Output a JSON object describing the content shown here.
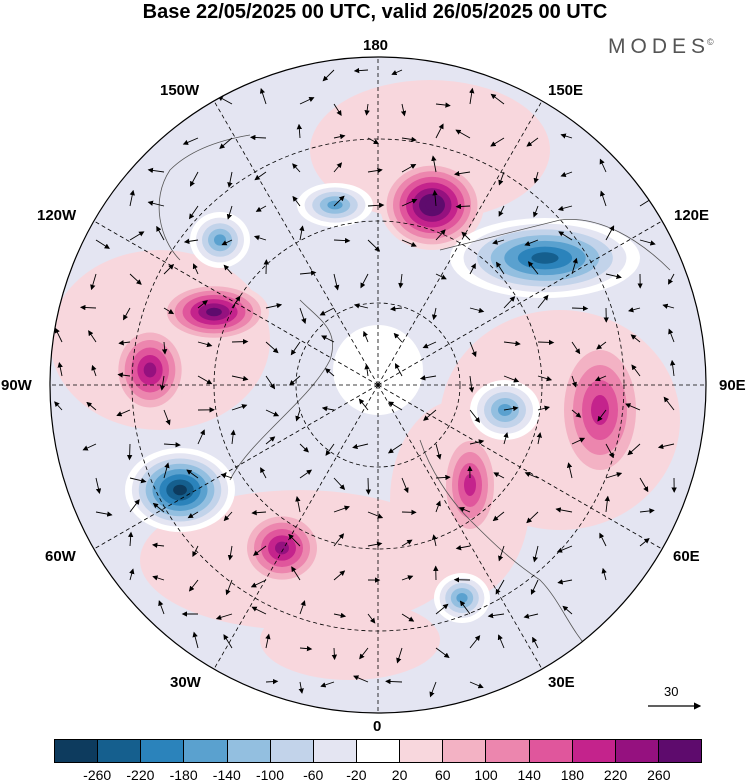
{
  "title": "Base 22/05/2025 00 UTC, valid 26/05/2025 00 UTC",
  "brand": {
    "text": "MODES",
    "mark": "©"
  },
  "longitude_labels": {
    "top": "180",
    "top_right": "150E",
    "upper_right": "120E",
    "right": "90E",
    "lower_right": "60E",
    "bottom_right": "30E",
    "bottom": "0",
    "bottom_left": "30W",
    "lower_left": "60W",
    "left": "90W",
    "upper_left": "120W",
    "top_left": "150W"
  },
  "reference_vector": {
    "value": "30"
  },
  "anomaly_centers": [
    {
      "name": "east-siberia-high",
      "sign": "positive",
      "level": 260
    },
    {
      "name": "east-siberia-low",
      "sign": "negative",
      "level": -220
    },
    {
      "name": "canada-high-north",
      "sign": "positive",
      "level": 220
    },
    {
      "name": "canada-high-south",
      "sign": "positive",
      "level": 180
    },
    {
      "name": "north-atlantic-low",
      "sign": "negative",
      "level": -260
    },
    {
      "name": "mid-atlantic-high",
      "sign": "positive",
      "level": 180
    },
    {
      "name": "central-asia-high",
      "sign": "positive",
      "level": 140
    },
    {
      "name": "west-siberia-high",
      "sign": "positive",
      "level": 140
    },
    {
      "name": "russia-low",
      "sign": "negative",
      "level": -140
    },
    {
      "name": "europe-low",
      "sign": "negative",
      "level": -140
    },
    {
      "name": "north-pacific-low-a",
      "sign": "negative",
      "level": -140
    },
    {
      "name": "north-pacific-low-b",
      "sign": "negative",
      "level": -140
    }
  ],
  "colorbar": {
    "colors": [
      "#0d3b5e",
      "#155f8e",
      "#2b83bb",
      "#5aa1cf",
      "#93bfe0",
      "#c2d3ea",
      "#e4e5f2",
      "#ffffff",
      "#f8d7dd",
      "#f3b2c4",
      "#ec86ae",
      "#e0569c",
      "#c4238c",
      "#95117f",
      "#5e0b6d"
    ],
    "ticks": [
      "-260",
      "-220",
      "-180",
      "-140",
      "-100",
      "-60",
      "-20",
      "20",
      "60",
      "100",
      "140",
      "180",
      "220",
      "260"
    ]
  }
}
